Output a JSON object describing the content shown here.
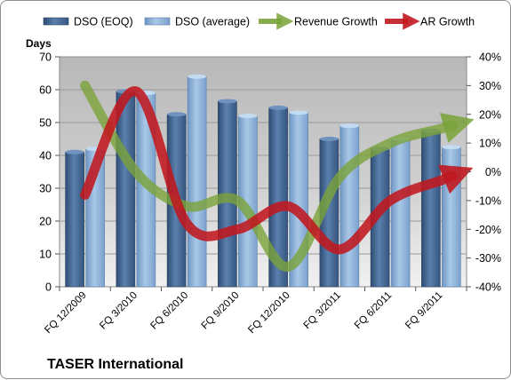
{
  "chart_data": {
    "type": "bar",
    "title": "",
    "company": "TASER International",
    "ylabel_left": "Days",
    "categories": [
      "FQ 12/2009",
      "FQ 3/2010",
      "FQ 6/2010",
      "FQ 9/2010",
      "FQ 12/2010",
      "FQ 3/2011",
      "FQ 6/2011",
      "FQ 9/2011"
    ],
    "y_left": {
      "min": 0,
      "max": 70,
      "step": 10,
      "ticks": [
        "0",
        "10",
        "20",
        "30",
        "40",
        "50",
        "60",
        "70"
      ]
    },
    "y_right": {
      "min": -40,
      "max": 40,
      "step": 10,
      "ticks": [
        "-40%",
        "-30%",
        "-20%",
        "-10%",
        "0%",
        "10%",
        "20%",
        "30%",
        "40%"
      ]
    },
    "bar_series": [
      {
        "name": "DSO (EOQ)",
        "color": "#4a6d9a",
        "values": [
          41,
          59.5,
          52.5,
          56.5,
          54.5,
          45,
          42,
          47.5
        ]
      },
      {
        "name": "DSO (average)",
        "color": "#8eb4dc",
        "values": [
          42,
          59,
          64,
          52,
          53,
          49,
          45,
          42.5
        ]
      }
    ],
    "line_series": [
      {
        "name": "Revenue Growth",
        "color": "#7aa33a",
        "values": [
          30,
          0,
          -12,
          -10,
          -33,
          -2,
          10,
          15
        ]
      },
      {
        "name": "AR Growth",
        "color": "#c0181f",
        "values": [
          -8,
          28,
          -18,
          -20,
          -12,
          -27,
          -10,
          -3
        ]
      }
    ],
    "legend_position": "top",
    "grid": true
  }
}
